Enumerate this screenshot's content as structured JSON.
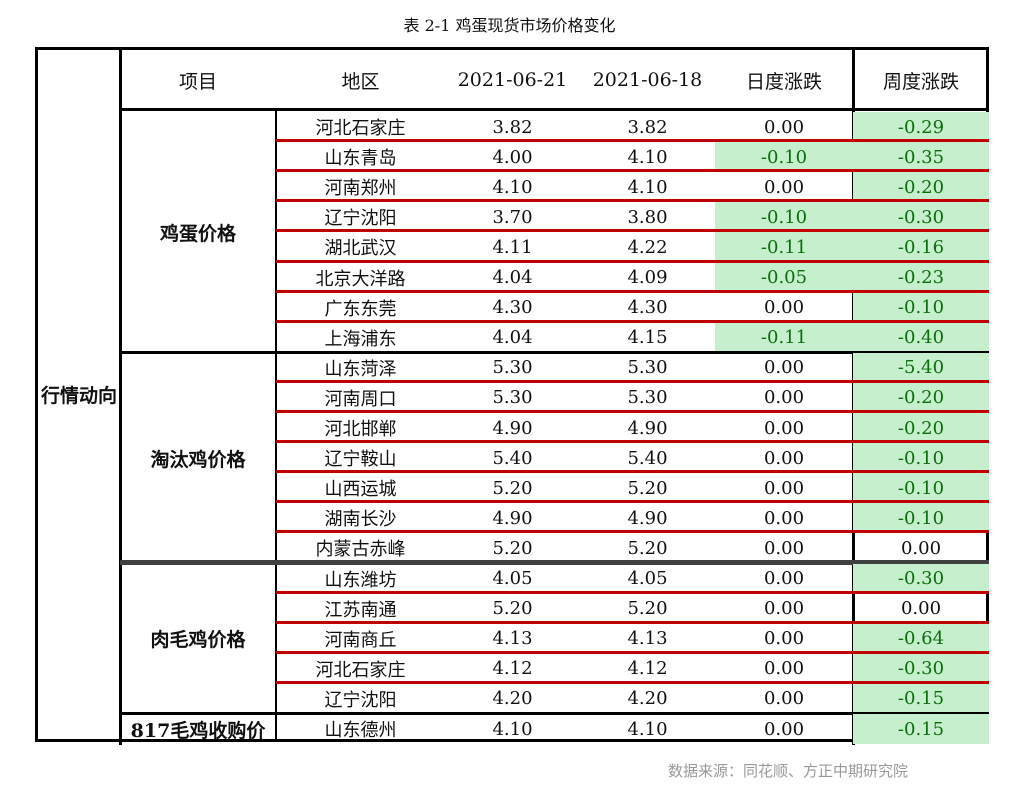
{
  "title": "表 2-1 鸡蛋现货市场价格变化",
  "source": "数据来源：同花顺、方正中期研究院",
  "outer_label": "行情动向",
  "headers": [
    "项目",
    "地区",
    "2021-06-21",
    "2021-06-18",
    "日度涨跌",
    "周度涨跌"
  ],
  "colors": {
    "positive_bg": "#c6efce",
    "negative_text": "#0a6e0a",
    "row_separator": "#c00000",
    "group_separator": "#404040"
  },
  "groups": [
    {
      "name": "鸡蛋价格",
      "rows": [
        [
          "河北石家庄",
          "3.82",
          "3.82",
          "0.00",
          "-0.29"
        ],
        [
          "山东青岛",
          "4.00",
          "4.10",
          "-0.10",
          "-0.35"
        ],
        [
          "河南郑州",
          "4.10",
          "4.10",
          "0.00",
          "-0.20"
        ],
        [
          "辽宁沈阳",
          "3.70",
          "3.80",
          "-0.10",
          "-0.30"
        ],
        [
          "湖北武汉",
          "4.11",
          "4.22",
          "-0.11",
          "-0.16"
        ],
        [
          "北京大洋路",
          "4.04",
          "4.09",
          "-0.05",
          "-0.23"
        ],
        [
          "广东东莞",
          "4.30",
          "4.30",
          "0.00",
          "-0.10"
        ],
        [
          "上海浦东",
          "4.04",
          "4.15",
          "-0.11",
          "-0.40"
        ]
      ]
    },
    {
      "name": "淘汰鸡价格",
      "rows": [
        [
          "山东菏泽",
          "5.30",
          "5.30",
          "0.00",
          "-5.40"
        ],
        [
          "河南周口",
          "5.30",
          "5.30",
          "0.00",
          "-0.20"
        ],
        [
          "河北邯郸",
          "4.90",
          "4.90",
          "0.00",
          "-0.20"
        ],
        [
          "辽宁鞍山",
          "5.40",
          "5.40",
          "0.00",
          "-0.10"
        ],
        [
          "山西运城",
          "5.20",
          "5.20",
          "0.00",
          "-0.10"
        ],
        [
          "湖南长沙",
          "4.90",
          "4.90",
          "0.00",
          "-0.10"
        ],
        [
          "内蒙古赤峰",
          "5.20",
          "5.20",
          "0.00",
          "0.00"
        ]
      ]
    },
    {
      "name": "肉毛鸡价格",
      "rows": [
        [
          "山东潍坊",
          "4.05",
          "4.05",
          "0.00",
          "-0.30"
        ],
        [
          "江苏南通",
          "5.20",
          "5.20",
          "0.00",
          "0.00"
        ],
        [
          "河南商丘",
          "4.13",
          "4.13",
          "0.00",
          "-0.64"
        ],
        [
          "河北石家庄",
          "4.12",
          "4.12",
          "0.00",
          "-0.30"
        ],
        [
          "辽宁沈阳",
          "4.20",
          "4.20",
          "0.00",
          "-0.15"
        ]
      ]
    },
    {
      "name": "817毛鸡收购价",
      "rows": [
        [
          "山东德州",
          "4.10",
          "4.10",
          "0.00",
          "-0.15"
        ]
      ]
    }
  ]
}
